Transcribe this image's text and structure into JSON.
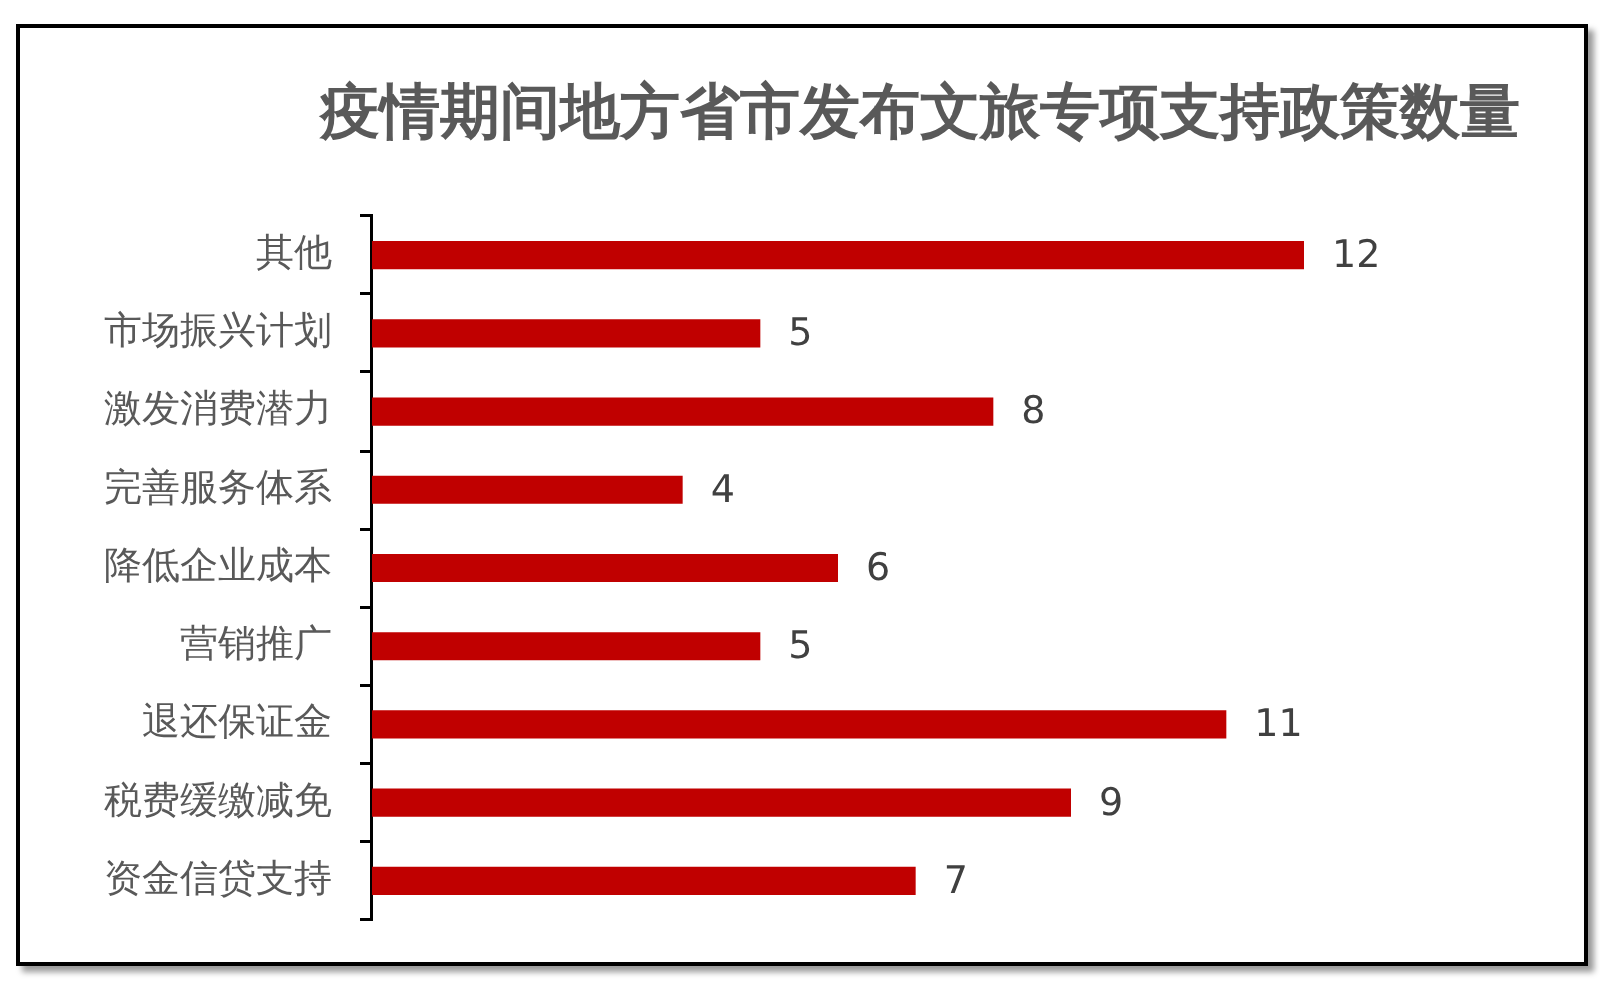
{
  "chart_data": {
    "type": "bar",
    "orientation": "horizontal",
    "title": "疫情期间地方省市发布文旅专项支持政策数量",
    "categories": [
      "其他",
      "市场振兴计划",
      "激发消费潜力",
      "完善服务体系",
      "降低企业成本",
      "营销推广",
      "退还保证金",
      "税费缓缴减免",
      "资金信贷支持"
    ],
    "values": [
      12,
      5,
      8,
      4,
      6,
      5,
      11,
      9,
      7
    ],
    "color": "#c00000",
    "data_labels": true,
    "tick_labels": "y"
  }
}
